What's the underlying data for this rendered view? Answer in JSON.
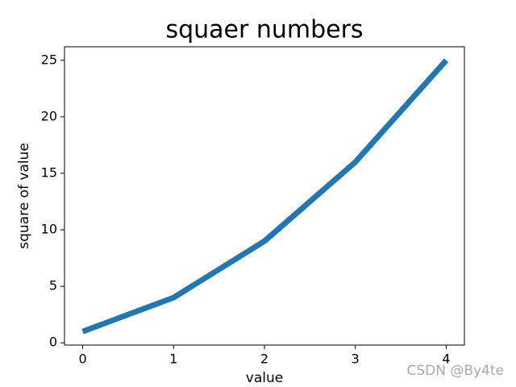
{
  "chart_data": {
    "type": "line",
    "title": "squaer numbers",
    "x_label": "value",
    "y_label": "square of value",
    "x": [
      0,
      1,
      2,
      3,
      4
    ],
    "values": [
      1,
      4,
      9,
      16,
      25
    ],
    "color": "#1f77b4",
    "xlim": [
      -0.2,
      4.2
    ],
    "xticks": [
      0,
      1,
      2,
      3,
      4
    ],
    "ylim": [
      -0.2,
      26.2
    ],
    "yticks": [
      0,
      5,
      10,
      15,
      20,
      25
    ],
    "grid": false,
    "watermark": "CSDN @By4te"
  }
}
